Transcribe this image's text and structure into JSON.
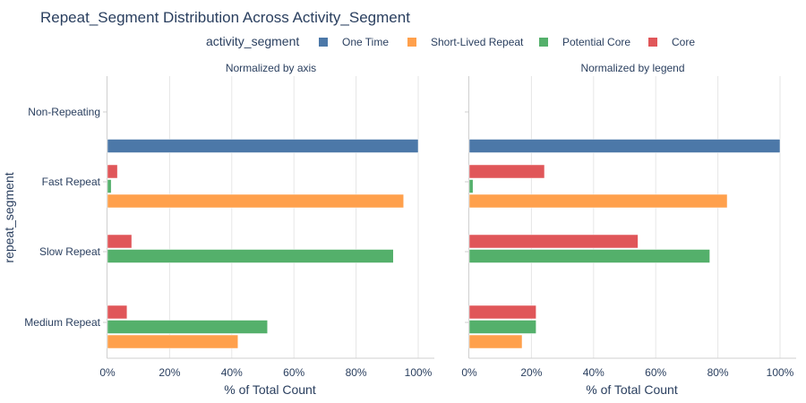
{
  "chart_data": {
    "type": "bar",
    "orientation": "horizontal",
    "title": "Repeat_Segment Distribution Across Activity_Segment",
    "legend_title": "activity_segment",
    "legend_position": "top",
    "categories": [
      "Non-Repeating",
      "Fast Repeat",
      "Slow Repeat",
      "Medium Repeat"
    ],
    "series": [
      {
        "name": "One Time",
        "color": "#4c78a8"
      },
      {
        "name": "Short-Lived Repeat",
        "color": "#ffa04c"
      },
      {
        "name": "Potential Core",
        "color": "#54b06b"
      },
      {
        "name": "Core",
        "color": "#e05659"
      }
    ],
    "ylabel": "repeat_segment",
    "xlim": [
      0,
      105
    ],
    "xticks": [
      0,
      20,
      40,
      60,
      80,
      100
    ],
    "tick_suffix": "%",
    "panels": [
      {
        "subtitle": "Normalized by axis",
        "xlabel": "% of Total Count",
        "values": {
          "One Time": [
            100,
            0,
            0,
            0
          ],
          "Short-Lived Repeat": [
            0,
            95.3,
            0,
            42
          ],
          "Potential Core": [
            0,
            1.2,
            92,
            51.5
          ],
          "Core": [
            0,
            3.2,
            7.8,
            6.3
          ]
        }
      },
      {
        "subtitle": "Normalized by legend",
        "xlabel": "% of Total Count",
        "values": {
          "One Time": [
            100,
            0,
            0,
            0
          ],
          "Short-Lived Repeat": [
            0,
            83,
            0,
            17
          ],
          "Potential Core": [
            0,
            1.2,
            77.4,
            21.5
          ],
          "Core": [
            0,
            24.2,
            54.3,
            21.5
          ]
        }
      }
    ]
  }
}
